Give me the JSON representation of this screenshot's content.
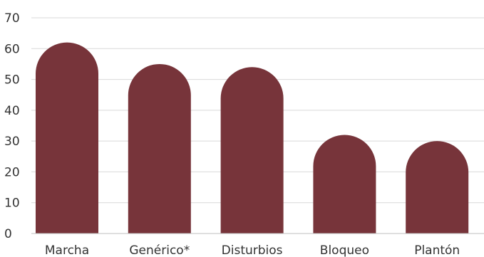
{
  "chart_data": {
    "type": "bar",
    "categories": [
      "Marcha",
      "Genérico*",
      "Disturbios",
      "Bloqueo",
      "Plantón"
    ],
    "values": [
      62,
      55,
      54,
      32,
      30
    ],
    "ylim": [
      0,
      70
    ],
    "yticks": [
      0,
      10,
      20,
      30,
      40,
      50,
      60,
      70
    ],
    "grid": true,
    "bar_shape": "rounded-top",
    "colors": {
      "bar": "#77343a",
      "grid": "#d9d9d9",
      "text": "#333333"
    }
  }
}
